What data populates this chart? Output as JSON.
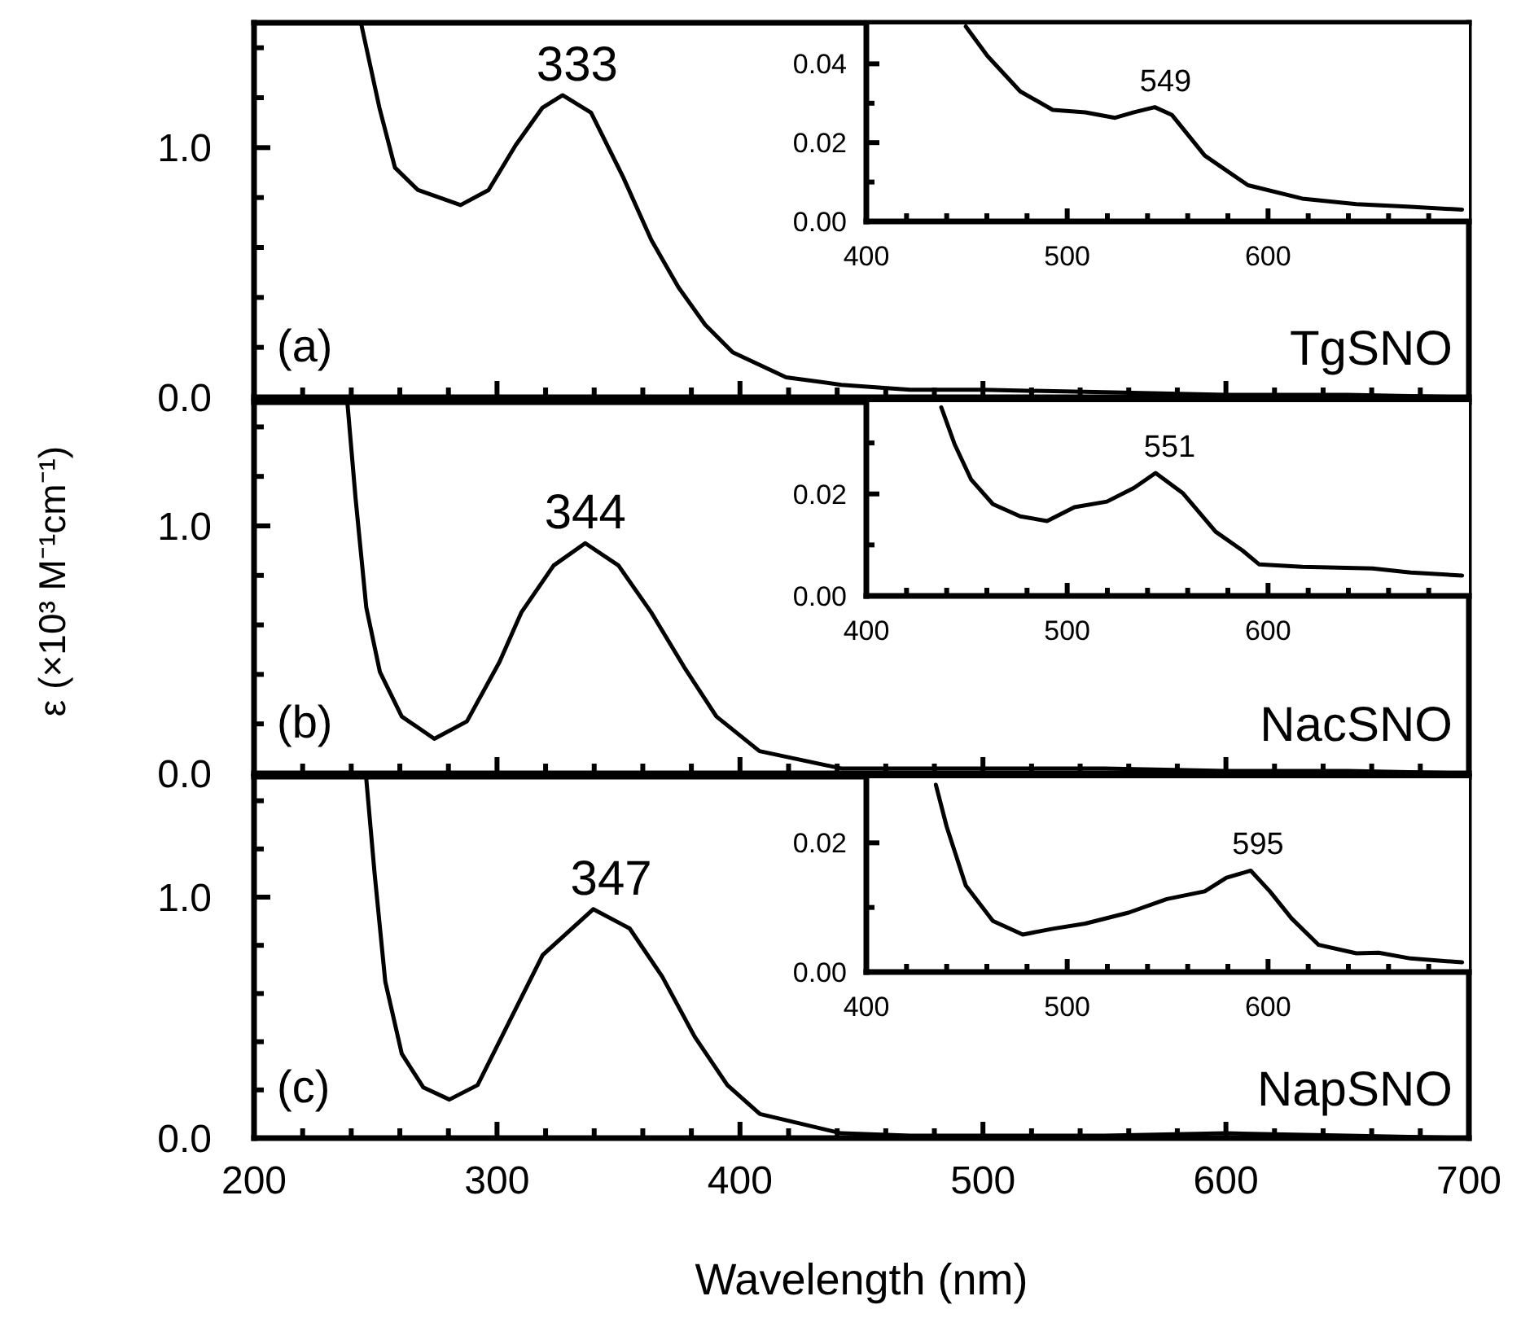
{
  "chart_data": [
    {
      "type": "line",
      "xlim": [
        200,
        700
      ],
      "ylim": [
        0,
        1.5
      ],
      "xticks": [
        200,
        {
          "value": 220,
          "label": null
        },
        {
          "value": 240,
          "label": null
        },
        {
          "value": 260,
          "label": null
        },
        {
          "value": 280,
          "label": null
        },
        300,
        {
          "value": 320,
          "label": null
        },
        {
          "value": 340,
          "label": null
        },
        {
          "value": 360,
          "label": null
        },
        {
          "value": 380,
          "label": null
        },
        400,
        {
          "value": 420,
          "label": null
        },
        {
          "value": 440,
          "label": null
        },
        {
          "value": 460,
          "label": null
        },
        {
          "value": 480,
          "label": null
        },
        500,
        {
          "value": 520,
          "label": null
        },
        {
          "value": 540,
          "label": null
        },
        {
          "value": 560,
          "label": null
        },
        {
          "value": 580,
          "label": null
        },
        600,
        {
          "value": 620,
          "label": null
        },
        {
          "value": 640,
          "label": null
        },
        {
          "value": 660,
          "label": null
        },
        {
          "value": 680,
          "label": null
        },
        700
      ],
      "yticks": [
        {
          "value": 0,
          "label": "0.0"
        },
        {
          "value": 0.2,
          "label": null
        },
        {
          "value": 0.4,
          "label": null
        },
        {
          "value": 0.6,
          "label": null
        },
        {
          "value": 0.8,
          "label": null
        },
        {
          "value": 1,
          "label": "1.0"
        },
        {
          "value": 1.2,
          "label": null
        },
        {
          "value": 1.4,
          "label": null
        }
      ],
      "tick_labels": "y",
      "series": [
        {
          "color": "#000000",
          "x": [
            244,
            251.6,
            258,
            267.5,
            285,
            296.5,
            307.7,
            318.7,
            327,
            338.7,
            352,
            363.5,
            374.7,
            385.7,
            397,
            419,
            441.7,
            470,
            500,
            550,
            600,
            650,
            700
          ],
          "values": [
            1.5,
            1.16,
            0.92,
            0.83,
            0.77,
            0.83,
            1.01,
            1.16,
            1.21,
            1.14,
            0.88,
            0.63,
            0.44,
            0.29,
            0.18,
            0.08,
            0.05,
            0.03,
            0.03,
            0.02,
            0.01,
            0.01,
            0.0
          ]
        }
      ],
      "annotations": [
        {
          "text": "333",
          "x": 333,
          "y": 1.21
        },
        "(a)",
        "TgSNO"
      ]
    },
    {
      "type": "line",
      "xlim": [
        400,
        700
      ],
      "ylim": [
        0,
        0.05
      ],
      "xticks": [
        400,
        {
          "value": 420,
          "label": null
        },
        {
          "value": 440,
          "label": null
        },
        {
          "value": 460,
          "label": null
        },
        {
          "value": 480,
          "label": null
        },
        500,
        {
          "value": 520,
          "label": null
        },
        {
          "value": 540,
          "label": null
        },
        {
          "value": 560,
          "label": null
        },
        {
          "value": 580,
          "label": null
        },
        600,
        {
          "value": 620,
          "label": null
        },
        {
          "value": 640,
          "label": null
        },
        {
          "value": 660,
          "label": null
        },
        {
          "value": 680,
          "label": null
        }
      ],
      "yticks": [
        {
          "value": 0,
          "label": "0.00"
        },
        {
          "value": 0.01,
          "label": null
        },
        {
          "value": 0.02,
          "label": "0.02"
        },
        {
          "value": 0.03,
          "label": null
        },
        {
          "value": 0.04,
          "label": "0.04"
        }
      ],
      "series": [
        {
          "color": "#000000",
          "x": [
            449.5,
            460.3,
            476.6,
            492.8,
            509,
            523.8,
            533.3,
            543.6,
            552.2,
            568.5,
            590,
            617,
            644,
            671,
            696.6
          ],
          "values": [
            0.0495,
            0.042,
            0.033,
            0.0283,
            0.0277,
            0.0263,
            0.0277,
            0.029,
            0.027,
            0.0167,
            0.0092,
            0.0058,
            0.0044,
            0.0037,
            0.003
          ]
        }
      ],
      "annotations": [
        {
          "text": "549",
          "x": 549,
          "y": 0.029
        }
      ]
    },
    {
      "type": "line",
      "xlim": [
        200,
        700
      ],
      "ylim": [
        0,
        1.5
      ],
      "xticks": [
        200,
        {
          "value": 220,
          "label": null
        },
        {
          "value": 240,
          "label": null
        },
        {
          "value": 260,
          "label": null
        },
        {
          "value": 280,
          "label": null
        },
        300,
        {
          "value": 320,
          "label": null
        },
        {
          "value": 340,
          "label": null
        },
        {
          "value": 360,
          "label": null
        },
        {
          "value": 380,
          "label": null
        },
        400,
        {
          "value": 420,
          "label": null
        },
        {
          "value": 440,
          "label": null
        },
        {
          "value": 460,
          "label": null
        },
        {
          "value": 480,
          "label": null
        },
        500,
        {
          "value": 520,
          "label": null
        },
        {
          "value": 540,
          "label": null
        },
        {
          "value": 560,
          "label": null
        },
        {
          "value": 580,
          "label": null
        },
        600,
        {
          "value": 620,
          "label": null
        },
        {
          "value": 640,
          "label": null
        },
        {
          "value": 660,
          "label": null
        },
        {
          "value": 680,
          "label": null
        },
        700
      ],
      "yticks": [
        {
          "value": 0,
          "label": "0.0"
        },
        {
          "value": 0.2,
          "label": null
        },
        {
          "value": 0.4,
          "label": null
        },
        {
          "value": 0.6,
          "label": null
        },
        {
          "value": 0.8,
          "label": null
        },
        {
          "value": 1,
          "label": "1.0"
        },
        {
          "value": 1.2,
          "label": null
        },
        {
          "value": 1.4,
          "label": null
        }
      ],
      "tick_labels": "y",
      "ylabel": "ε (×10³ M⁻¹cm⁻¹)",
      "series": [
        {
          "color": "#000000",
          "x": [
            238.4,
            241.8,
            246.2,
            251.8,
            260.8,
            274.2,
            287.6,
            301,
            310,
            323.3,
            336.3,
            350,
            363.5,
            377,
            390.3,
            408,
            441.7,
            470,
            500,
            550,
            600,
            650,
            700
          ],
          "values": [
            1.5,
            1.11,
            0.67,
            0.41,
            0.23,
            0.14,
            0.21,
            0.45,
            0.65,
            0.84,
            0.93,
            0.84,
            0.65,
            0.43,
            0.23,
            0.09,
            0.02,
            0.02,
            0.02,
            0.02,
            0.01,
            0.01,
            0.0
          ]
        }
      ],
      "annotations": [
        {
          "text": "344",
          "x": 336.3,
          "y": 0.93
        },
        "(b)",
        "NacSNO"
      ]
    },
    {
      "type": "line",
      "xlim": [
        400,
        700
      ],
      "ylim": [
        0,
        0.038
      ],
      "xticks": [
        400,
        {
          "value": 420,
          "label": null
        },
        {
          "value": 440,
          "label": null
        },
        {
          "value": 460,
          "label": null
        },
        {
          "value": 480,
          "label": null
        },
        500,
        {
          "value": 520,
          "label": null
        },
        {
          "value": 540,
          "label": null
        },
        {
          "value": 560,
          "label": null
        },
        {
          "value": 580,
          "label": null
        },
        600,
        {
          "value": 620,
          "label": null
        },
        {
          "value": 640,
          "label": null
        },
        {
          "value": 660,
          "label": null
        },
        {
          "value": 680,
          "label": null
        }
      ],
      "yticks": [
        {
          "value": 0,
          "label": "0.00"
        },
        {
          "value": 0.01,
          "label": null
        },
        {
          "value": 0.02,
          "label": "0.02"
        },
        {
          "value": 0.03,
          "label": null
        }
      ],
      "series": [
        {
          "color": "#000000",
          "x": [
            437.3,
            444,
            452.2,
            463,
            476.6,
            490,
            503.6,
            519.8,
            533.3,
            544,
            557.7,
            573.9,
            587.3,
            595.5,
            617,
            652,
            671,
            696.6
          ],
          "values": [
            0.037,
            0.0297,
            0.0228,
            0.018,
            0.0156,
            0.0147,
            0.0174,
            0.0185,
            0.0212,
            0.0241,
            0.0201,
            0.0126,
            0.0089,
            0.0062,
            0.0057,
            0.0054,
            0.0046,
            0.004
          ]
        }
      ],
      "annotations": [
        {
          "text": "551",
          "x": 551,
          "y": 0.0241
        }
      ]
    },
    {
      "type": "line",
      "xlim": [
        200,
        700
      ],
      "ylim": [
        0,
        1.5
      ],
      "xticks": [
        200,
        {
          "value": 220,
          "label": null
        },
        {
          "value": 240,
          "label": null
        },
        {
          "value": 260,
          "label": null
        },
        {
          "value": 280,
          "label": null
        },
        300,
        {
          "value": 320,
          "label": null
        },
        {
          "value": 340,
          "label": null
        },
        {
          "value": 360,
          "label": null
        },
        {
          "value": 380,
          "label": null
        },
        400,
        {
          "value": 420,
          "label": null
        },
        {
          "value": 440,
          "label": null
        },
        {
          "value": 460,
          "label": null
        },
        {
          "value": 480,
          "label": null
        },
        500,
        {
          "value": 520,
          "label": null
        },
        {
          "value": 540,
          "label": null
        },
        {
          "value": 560,
          "label": null
        },
        {
          "value": 580,
          "label": null
        },
        600,
        {
          "value": 620,
          "label": null
        },
        {
          "value": 640,
          "label": null
        },
        {
          "value": 660,
          "label": null
        },
        {
          "value": 680,
          "label": null
        },
        700
      ],
      "yticks": [
        {
          "value": 0,
          "label": "0.0"
        },
        {
          "value": 0.2,
          "label": null
        },
        {
          "value": 0.4,
          "label": null
        },
        {
          "value": 0.6,
          "label": null
        },
        {
          "value": 0.8,
          "label": null
        },
        {
          "value": 1,
          "label": "1.0"
        },
        {
          "value": 1.2,
          "label": null
        },
        {
          "value": 1.4,
          "label": null
        }
      ],
      "xlabel": "Wavelength (nm)",
      "series": [
        {
          "color": "#000000",
          "x": [
            246.2,
            249.6,
            254,
            260.8,
            269.7,
            280.4,
            292,
            305.4,
            318.8,
            339.6,
            354.6,
            368,
            381.4,
            394.8,
            408.2,
            441.7,
            470,
            500,
            550,
            600,
            650,
            700
          ],
          "values": [
            1.49,
            1.1,
            0.65,
            0.35,
            0.21,
            0.16,
            0.22,
            0.49,
            0.76,
            0.95,
            0.87,
            0.67,
            0.42,
            0.22,
            0.1,
            0.02,
            0.01,
            0.01,
            0.01,
            0.02,
            0.01,
            0.0
          ]
        }
      ],
      "annotations": [
        {
          "text": "347",
          "x": 347,
          "y": 0.95
        },
        "(c)",
        "NapSNO"
      ]
    },
    {
      "type": "line",
      "xlim": [
        400,
        700
      ],
      "ylim": [
        0,
        0.03
      ],
      "xticks": [
        400,
        {
          "value": 420,
          "label": null
        },
        {
          "value": 440,
          "label": null
        },
        {
          "value": 460,
          "label": null
        },
        {
          "value": 480,
          "label": null
        },
        500,
        {
          "value": 520,
          "label": null
        },
        {
          "value": 540,
          "label": null
        },
        {
          "value": 560,
          "label": null
        },
        {
          "value": 580,
          "label": null
        },
        600,
        {
          "value": 620,
          "label": null
        },
        {
          "value": 640,
          "label": null
        },
        {
          "value": 660,
          "label": null
        },
        {
          "value": 680,
          "label": null
        }
      ],
      "yticks": [
        {
          "value": 0,
          "label": "0.00"
        },
        {
          "value": 0.01,
          "label": null
        },
        {
          "value": 0.02,
          "label": "0.02"
        }
      ],
      "series": [
        {
          "color": "#000000",
          "x": [
            434.6,
            440,
            449.5,
            463,
            477.9,
            492.8,
            509,
            530.6,
            549.6,
            568.5,
            579.3,
            591.4,
            600.9,
            611.7,
            625.2,
            644,
            655,
            671,
            696.6
          ],
          "values": [
            0.029,
            0.0225,
            0.0134,
            0.0079,
            0.0058,
            0.0067,
            0.0075,
            0.0092,
            0.0113,
            0.0125,
            0.0146,
            0.0157,
            0.0125,
            0.0083,
            0.0042,
            0.0029,
            0.003,
            0.0021,
            0.0015
          ]
        }
      ],
      "annotations": [
        {
          "text": "595",
          "x": 595,
          "y": 0.0157
        }
      ]
    }
  ]
}
